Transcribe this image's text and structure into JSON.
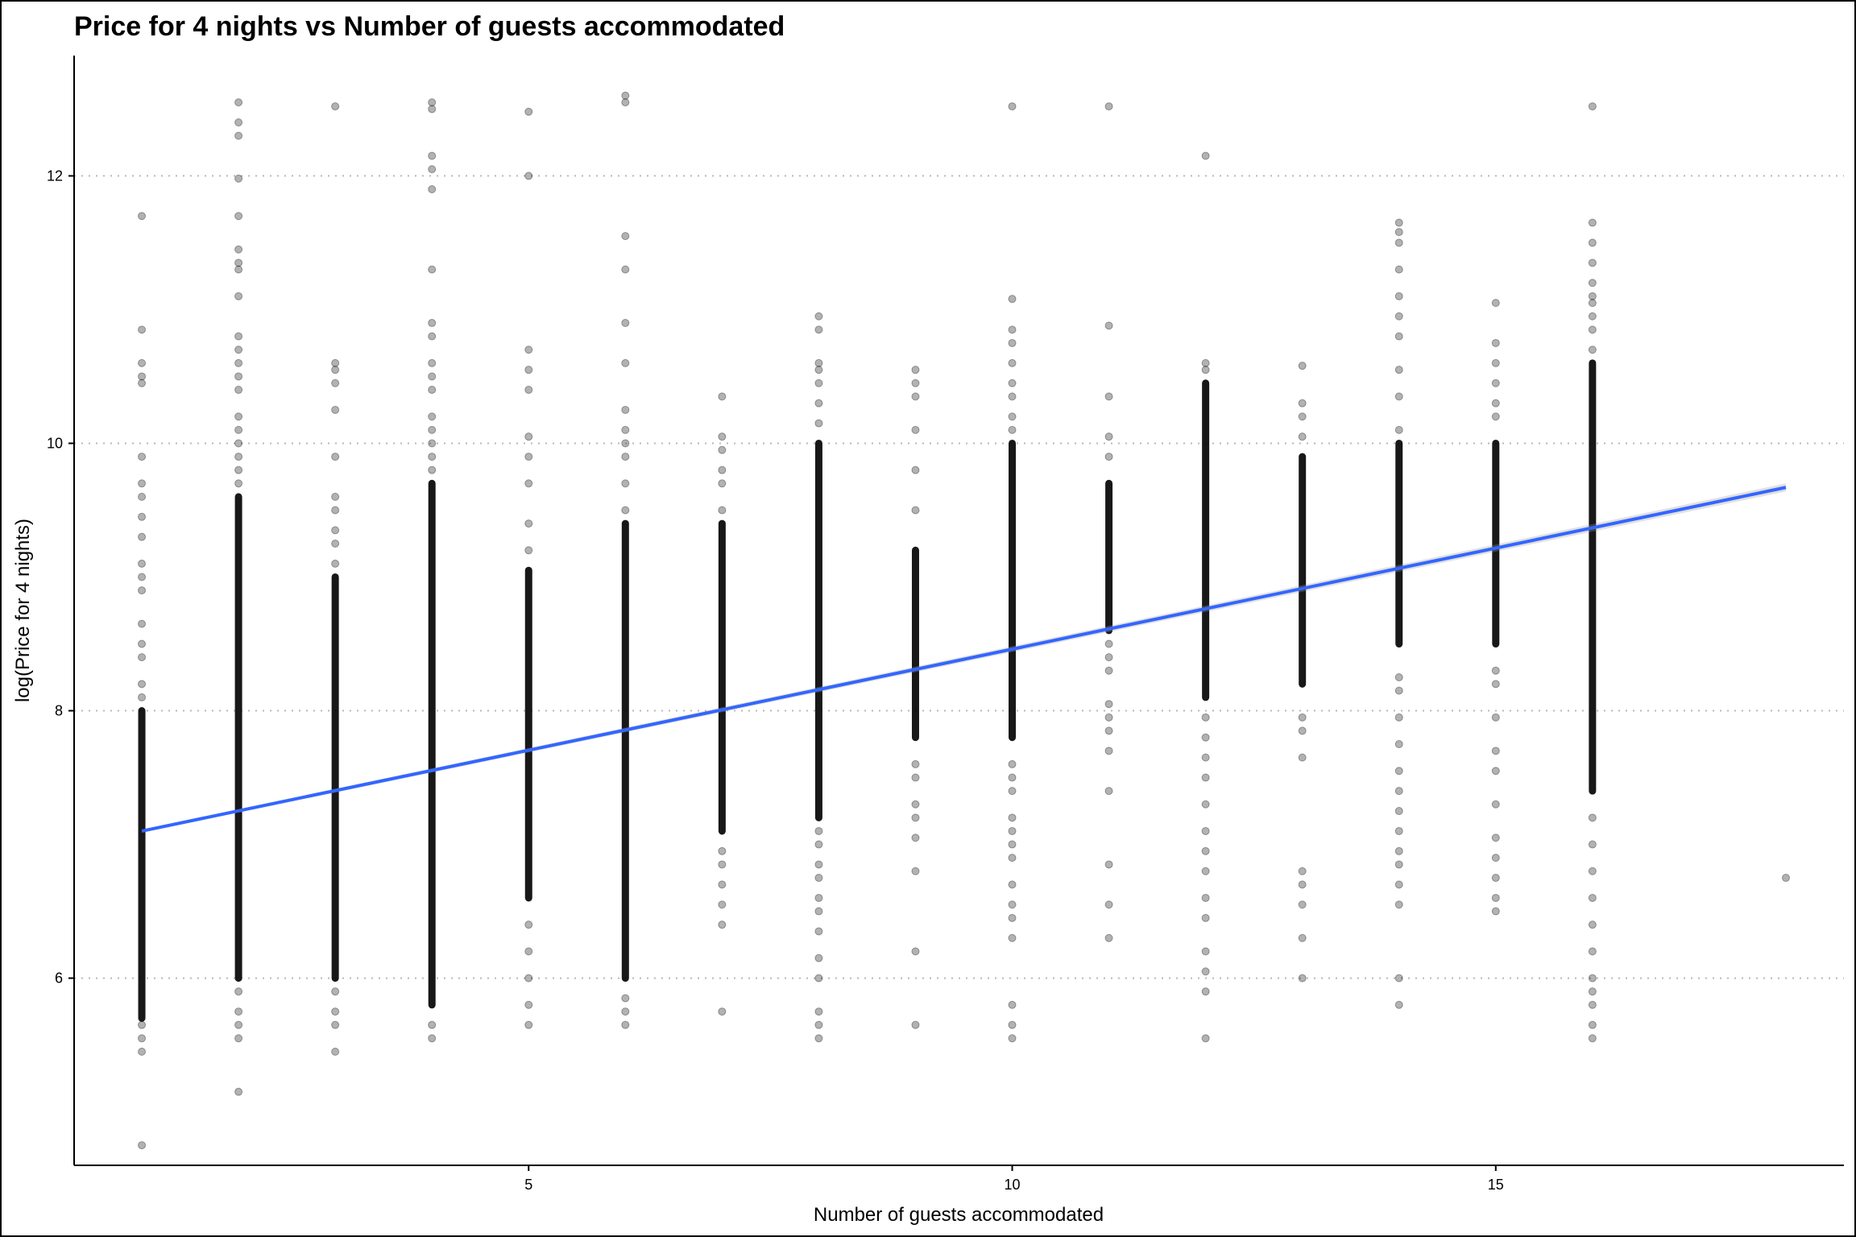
{
  "chart_data": {
    "type": "scatter",
    "title": "Price for 4 nights vs Number of guests accommodated",
    "xlabel": "Number of guests accommodated",
    "ylabel": "log(Price for 4 nights)",
    "xlim": [
      0.3,
      18.6
    ],
    "ylim": [
      4.6,
      12.9
    ],
    "x_ticks": [
      5,
      10,
      15
    ],
    "y_ticks": [
      6,
      8,
      10,
      12
    ],
    "grid": "horizontal dotted",
    "colors": {
      "points": "#000000",
      "trend": "#3366FF",
      "grid": "#b8b8b8"
    },
    "trend_line": {
      "x": [
        1,
        18
      ],
      "y": [
        7.1,
        9.67
      ]
    },
    "points": [
      {
        "x": 1,
        "dense": [
          5.7,
          8.0
        ],
        "y": [
          4.75,
          5.45,
          5.55,
          5.65,
          8.1,
          8.2,
          8.4,
          8.5,
          8.65,
          8.9,
          9.0,
          9.1,
          9.3,
          9.45,
          9.6,
          9.7,
          9.9,
          10.45,
          10.5,
          10.6,
          10.85,
          11.7
        ]
      },
      {
        "x": 2,
        "dense": [
          6.0,
          9.6
        ],
        "y": [
          5.15,
          5.55,
          5.65,
          5.75,
          5.9,
          9.7,
          9.8,
          9.9,
          10.0,
          10.1,
          10.2,
          10.4,
          10.5,
          10.6,
          10.7,
          10.8,
          11.1,
          11.3,
          11.35,
          11.45,
          11.7,
          11.98,
          12.3,
          12.4,
          12.55
        ]
      },
      {
        "x": 3,
        "dense": [
          6.0,
          9.0
        ],
        "y": [
          5.45,
          5.65,
          5.75,
          5.9,
          9.1,
          9.25,
          9.35,
          9.5,
          9.6,
          9.9,
          10.25,
          10.45,
          10.55,
          10.6,
          12.52
        ]
      },
      {
        "x": 4,
        "dense": [
          5.8,
          9.7
        ],
        "y": [
          5.55,
          5.65,
          9.8,
          9.9,
          10.0,
          10.1,
          10.2,
          10.4,
          10.5,
          10.6,
          10.8,
          10.9,
          11.3,
          11.9,
          12.05,
          12.15,
          12.5,
          12.55
        ]
      },
      {
        "x": 5,
        "dense": [
          6.6,
          9.05
        ],
        "y": [
          5.65,
          5.8,
          6.0,
          6.2,
          6.4,
          9.2,
          9.4,
          9.7,
          9.9,
          10.05,
          10.4,
          10.55,
          10.7,
          12.0,
          12.48
        ]
      },
      {
        "x": 6,
        "dense": [
          6.0,
          9.4
        ],
        "y": [
          5.65,
          5.75,
          5.85,
          9.5,
          9.7,
          9.9,
          10.0,
          10.1,
          10.25,
          10.6,
          10.9,
          11.3,
          11.55,
          12.55,
          12.6
        ]
      },
      {
        "x": 7,
        "dense": [
          7.1,
          9.4
        ],
        "y": [
          5.75,
          6.4,
          6.55,
          6.7,
          6.85,
          6.95,
          9.5,
          9.7,
          9.8,
          9.95,
          10.05,
          10.35
        ]
      },
      {
        "x": 8,
        "dense": [
          7.2,
          10.0
        ],
        "y": [
          5.55,
          5.65,
          5.75,
          6.0,
          6.15,
          6.35,
          6.5,
          6.6,
          6.75,
          6.85,
          7.0,
          7.1,
          10.15,
          10.3,
          10.45,
          10.55,
          10.6,
          10.85,
          10.95
        ]
      },
      {
        "x": 9,
        "dense": [
          7.8,
          9.2
        ],
        "y": [
          5.65,
          6.2,
          6.8,
          7.05,
          7.2,
          7.3,
          7.5,
          7.6,
          9.5,
          9.8,
          10.1,
          10.35,
          10.45,
          10.55
        ]
      },
      {
        "x": 10,
        "dense": [
          7.8,
          10.0
        ],
        "y": [
          5.55,
          5.65,
          5.8,
          6.3,
          6.45,
          6.55,
          6.7,
          6.9,
          7.0,
          7.1,
          7.2,
          7.4,
          7.5,
          7.6,
          10.1,
          10.2,
          10.35,
          10.45,
          10.6,
          10.75,
          10.85,
          11.08,
          12.52
        ]
      },
      {
        "x": 11,
        "dense": [
          8.6,
          9.7
        ],
        "y": [
          6.3,
          6.55,
          6.85,
          7.4,
          7.7,
          7.85,
          7.95,
          8.05,
          8.3,
          8.4,
          8.5,
          9.9,
          10.05,
          10.35,
          10.88,
          12.52
        ]
      },
      {
        "x": 12,
        "dense": [
          8.1,
          10.45
        ],
        "y": [
          5.55,
          5.9,
          6.05,
          6.2,
          6.45,
          6.6,
          6.8,
          6.95,
          7.1,
          7.3,
          7.5,
          7.65,
          7.8,
          7.95,
          10.55,
          10.6,
          12.15
        ]
      },
      {
        "x": 13,
        "dense": [
          8.2,
          9.9
        ],
        "y": [
          6.0,
          6.3,
          6.55,
          6.7,
          6.8,
          7.65,
          7.85,
          7.95,
          10.05,
          10.2,
          10.3,
          10.58
        ]
      },
      {
        "x": 14,
        "dense": [
          8.5,
          10.0
        ],
        "y": [
          5.8,
          6.0,
          6.55,
          6.7,
          6.85,
          6.95,
          7.1,
          7.25,
          7.4,
          7.55,
          7.75,
          7.95,
          8.15,
          8.25,
          10.1,
          10.35,
          10.55,
          10.8,
          10.95,
          11.1,
          11.3,
          11.5,
          11.58,
          11.65
        ]
      },
      {
        "x": 15,
        "dense": [
          8.5,
          10.0
        ],
        "y": [
          6.5,
          6.6,
          6.75,
          6.9,
          7.05,
          7.3,
          7.55,
          7.7,
          7.95,
          8.2,
          8.3,
          10.2,
          10.3,
          10.45,
          10.6,
          10.75,
          11.05
        ]
      },
      {
        "x": 16,
        "dense": [
          7.4,
          10.6
        ],
        "y": [
          5.55,
          5.65,
          5.8,
          5.9,
          6.0,
          6.2,
          6.4,
          6.6,
          6.8,
          7.0,
          7.2,
          10.7,
          10.85,
          10.95,
          11.05,
          11.1,
          11.2,
          11.35,
          11.5,
          11.65,
          12.52
        ]
      },
      {
        "x": 18,
        "dense": null,
        "y": [
          6.75
        ]
      }
    ]
  }
}
